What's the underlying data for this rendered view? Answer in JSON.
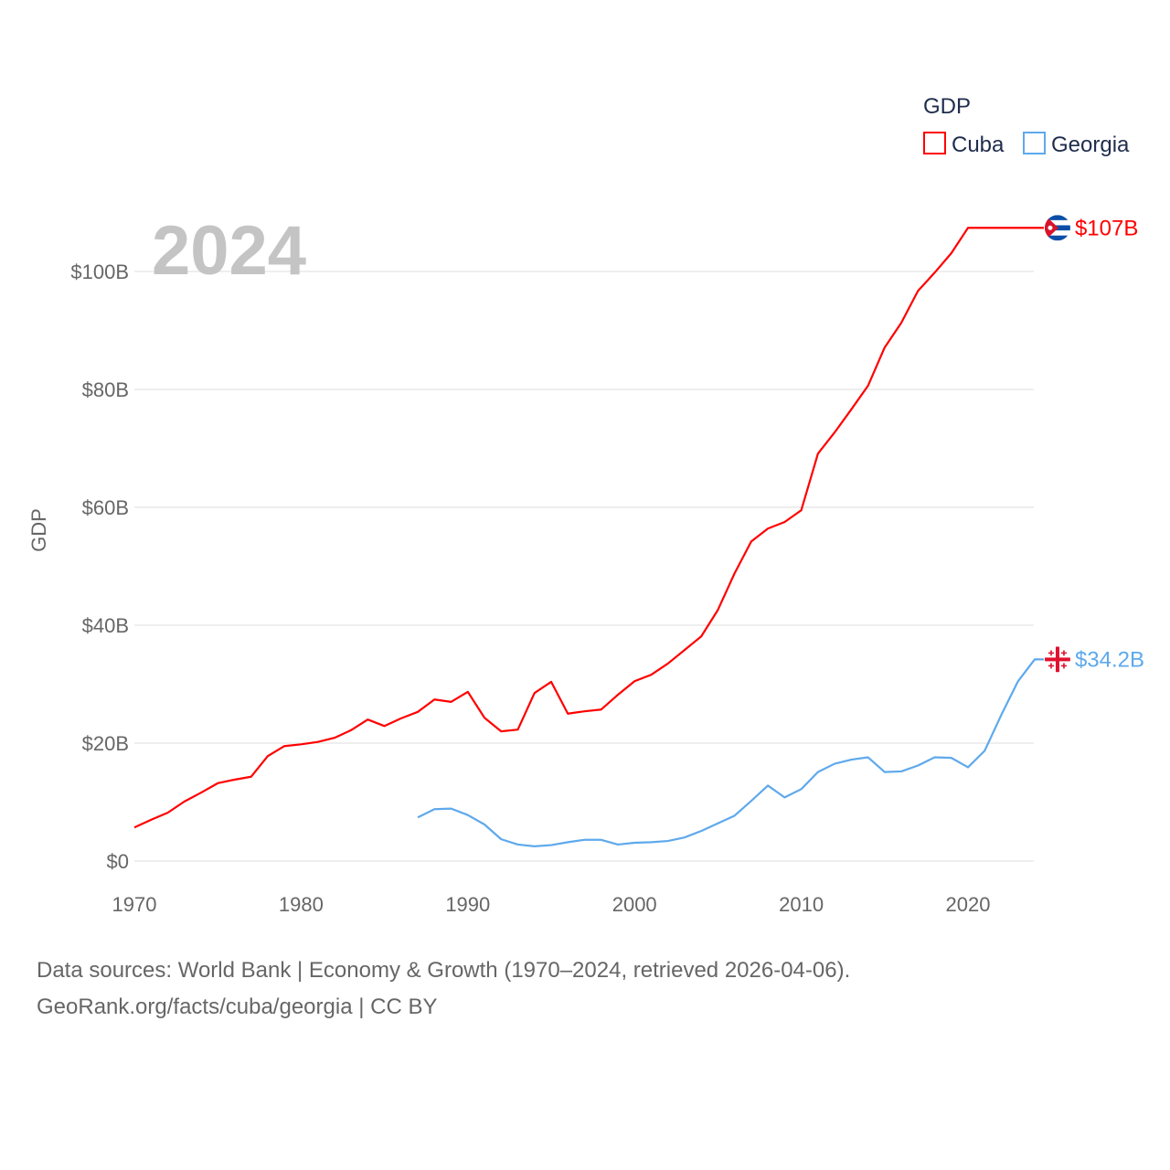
{
  "chart_data": {
    "type": "line",
    "title": "",
    "year_label": "2024",
    "xlabel": "",
    "ylabel": "GDP",
    "xlim": [
      1970,
      2024
    ],
    "ylim": [
      0,
      107.4
    ],
    "x_ticks": [
      1970,
      1980,
      1990,
      2000,
      2010,
      2020
    ],
    "y_ticks": [
      0,
      20,
      40,
      60,
      80,
      100
    ],
    "y_tick_labels": [
      "$0",
      "$20B",
      "$40B",
      "$60B",
      "$80B",
      "$100B"
    ],
    "grid": true,
    "legend": {
      "title": "GDP",
      "placement": "top-right",
      "entries": [
        "Cuba",
        "Georgia"
      ]
    },
    "series": [
      {
        "name": "Cuba",
        "color": "#ff0000",
        "end_label": "$107B",
        "end_year": 2024,
        "x": [
          1970,
          1971,
          1972,
          1973,
          1974,
          1975,
          1976,
          1977,
          1978,
          1979,
          1980,
          1981,
          1982,
          1983,
          1984,
          1985,
          1986,
          1987,
          1988,
          1989,
          1990,
          1991,
          1992,
          1993,
          1994,
          1995,
          1996,
          1997,
          1998,
          1999,
          2000,
          2001,
          2002,
          2003,
          2004,
          2005,
          2006,
          2007,
          2008,
          2009,
          2010,
          2011,
          2012,
          2013,
          2014,
          2015,
          2016,
          2017,
          2018,
          2019,
          2020
        ],
        "values": [
          5.7,
          7.0,
          8.2,
          10.1,
          11.6,
          13.2,
          13.8,
          14.3,
          17.8,
          19.5,
          19.8,
          20.2,
          20.9,
          22.2,
          24.0,
          22.9,
          24.2,
          25.3,
          27.4,
          27.0,
          28.7,
          24.3,
          22.0,
          22.3,
          28.5,
          30.4,
          25.0,
          25.4,
          25.7,
          28.2,
          30.5,
          31.6,
          33.5,
          35.8,
          38.1,
          42.6,
          48.8,
          54.2,
          56.4,
          57.5,
          59.5,
          69.1,
          72.7,
          76.6,
          80.6,
          87.1,
          91.3,
          96.7,
          99.8,
          103.1,
          107.4
        ]
      },
      {
        "name": "Georgia",
        "color": "#5ea9ec",
        "end_label": "$34.2B",
        "end_year": 2024,
        "x": [
          1987,
          1988,
          1989,
          1990,
          1991,
          1992,
          1993,
          1994,
          1995,
          1996,
          1997,
          1998,
          1999,
          2000,
          2001,
          2002,
          2003,
          2004,
          2005,
          2006,
          2007,
          2008,
          2009,
          2010,
          2011,
          2012,
          2013,
          2014,
          2015,
          2016,
          2017,
          2018,
          2019,
          2020,
          2021,
          2022,
          2023,
          2024
        ],
        "values": [
          7.4,
          8.8,
          8.9,
          7.8,
          6.2,
          3.7,
          2.8,
          2.5,
          2.7,
          3.2,
          3.6,
          3.6,
          2.8,
          3.1,
          3.2,
          3.4,
          4.0,
          5.1,
          6.4,
          7.7,
          10.2,
          12.8,
          10.8,
          12.2,
          15.1,
          16.5,
          17.2,
          17.6,
          15.1,
          15.2,
          16.2,
          17.6,
          17.5,
          15.9,
          18.7,
          24.8,
          30.5,
          34.2
        ]
      }
    ]
  },
  "footer": {
    "line1": "Data sources: World Bank | Economy & Growth (1970–2024, retrieved 2026-04-06).",
    "line2": "GeoRank.org/facts/cuba/georgia | CC BY"
  }
}
